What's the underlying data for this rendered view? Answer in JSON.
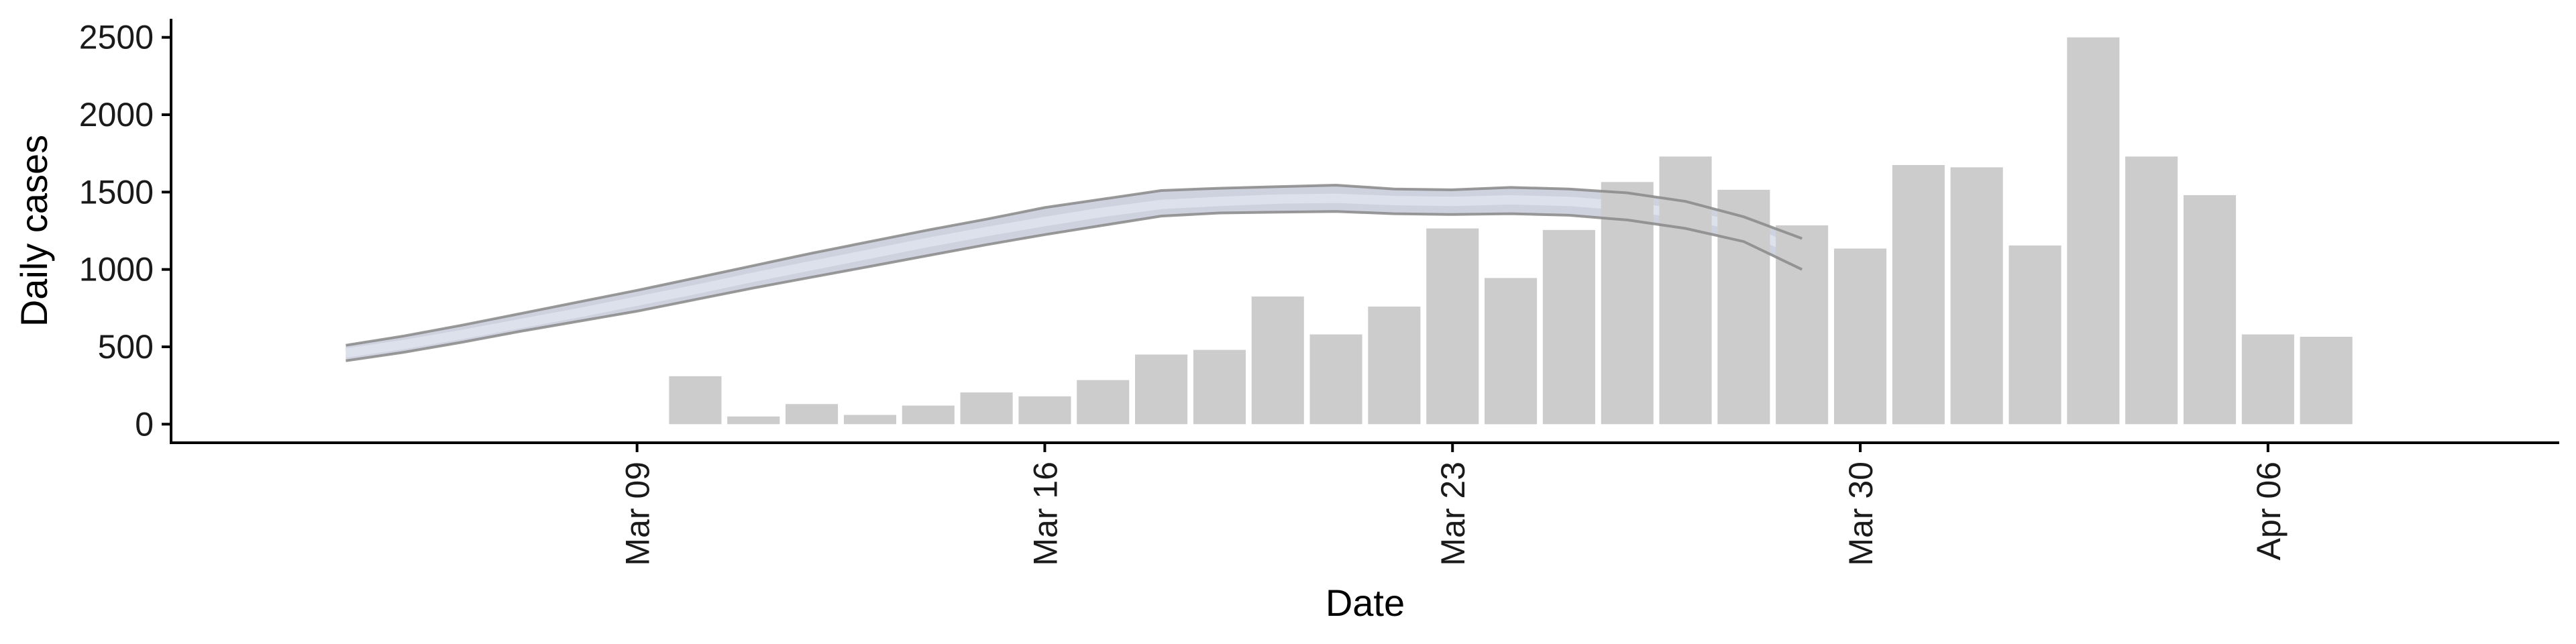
{
  "chart_data": {
    "type": "bar",
    "xlabel": "Date",
    "ylabel": "Daily cases",
    "ylim": [
      -120,
      2620
    ],
    "yticks": [
      0,
      500,
      1000,
      1500,
      2000,
      2500
    ],
    "xlim": [
      "2020-03-01",
      "2020-04-11"
    ],
    "xticks": [
      {
        "date": "2020-03-09",
        "label": "Mar 09"
      },
      {
        "date": "2020-03-16",
        "label": "Mar 16"
      },
      {
        "date": "2020-03-23",
        "label": "Mar 23"
      },
      {
        "date": "2020-03-30",
        "label": "Mar 30"
      },
      {
        "date": "2020-04-06",
        "label": "Apr 06"
      }
    ],
    "bars": {
      "color": "#cccccc",
      "dates": [
        "2020-03-10",
        "2020-03-11",
        "2020-03-12",
        "2020-03-13",
        "2020-03-14",
        "2020-03-15",
        "2020-03-16",
        "2020-03-17",
        "2020-03-18",
        "2020-03-19",
        "2020-03-20",
        "2020-03-21",
        "2020-03-22",
        "2020-03-23",
        "2020-03-24",
        "2020-03-25",
        "2020-03-26",
        "2020-03-27",
        "2020-03-28",
        "2020-03-29",
        "2020-03-30",
        "2020-03-31",
        "2020-04-01",
        "2020-04-02",
        "2020-04-03",
        "2020-04-04",
        "2020-04-05",
        "2020-04-06",
        "2020-04-07"
      ],
      "values": [
        310,
        50,
        130,
        60,
        120,
        205,
        180,
        285,
        450,
        480,
        825,
        580,
        760,
        1265,
        945,
        1255,
        1565,
        1730,
        1515,
        1285,
        1135,
        1675,
        1660,
        1155,
        2500,
        1730,
        1480,
        580,
        565
      ]
    },
    "trend": {
      "fill_color": "#c5c9d8",
      "center_color": "#dfe2ec",
      "edge_color": "#888888",
      "dates": [
        "2020-03-04",
        "2020-03-05",
        "2020-03-06",
        "2020-03-07",
        "2020-03-08",
        "2020-03-09",
        "2020-03-10",
        "2020-03-11",
        "2020-03-12",
        "2020-03-13",
        "2020-03-14",
        "2020-03-15",
        "2020-03-16",
        "2020-03-17",
        "2020-03-18",
        "2020-03-19",
        "2020-03-20",
        "2020-03-21",
        "2020-03-22",
        "2020-03-23",
        "2020-03-24",
        "2020-03-25",
        "2020-03-26",
        "2020-03-27",
        "2020-03-28",
        "2020-03-29"
      ],
      "upper": [
        510,
        570,
        640,
        715,
        790,
        865,
        945,
        1025,
        1105,
        1180,
        1255,
        1325,
        1400,
        1455,
        1510,
        1525,
        1535,
        1545,
        1520,
        1515,
        1530,
        1520,
        1495,
        1440,
        1340,
        1200
      ],
      "center": [
        460,
        515,
        580,
        650,
        720,
        795,
        870,
        950,
        1025,
        1100,
        1175,
        1245,
        1310,
        1370,
        1420,
        1440,
        1455,
        1460,
        1445,
        1440,
        1450,
        1440,
        1410,
        1355,
        1270,
        1100
      ],
      "lower": [
        410,
        465,
        530,
        600,
        665,
        730,
        805,
        880,
        950,
        1020,
        1090,
        1160,
        1225,
        1285,
        1345,
        1365,
        1370,
        1375,
        1360,
        1355,
        1360,
        1350,
        1320,
        1265,
        1180,
        1000
      ]
    }
  }
}
